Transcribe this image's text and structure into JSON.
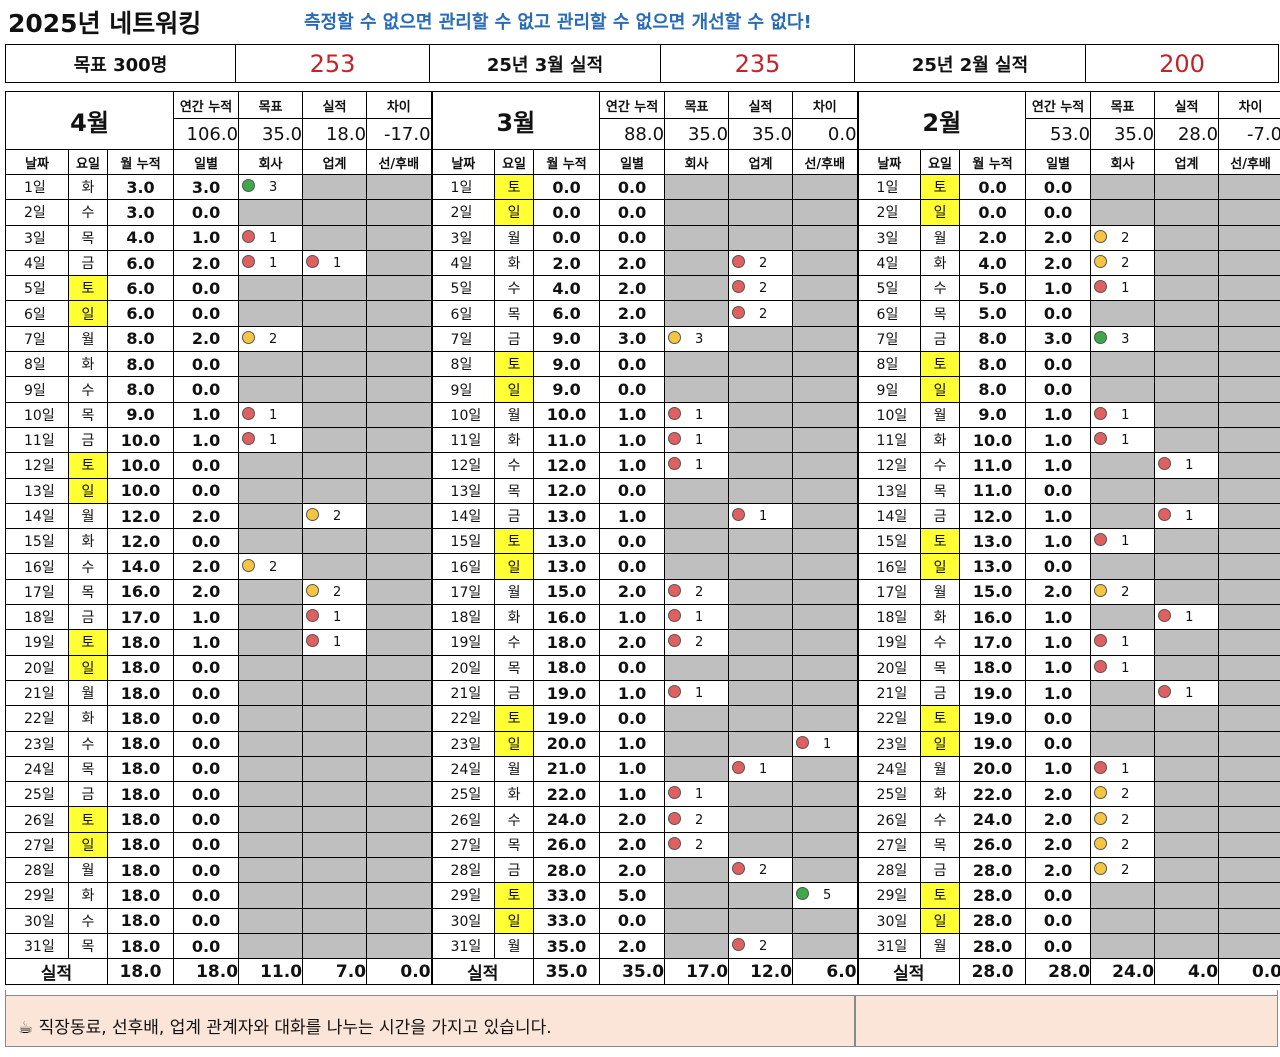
{
  "title": "2025년 네트워킹",
  "motto": "측정할 수 없으면 관리할 수 없고 관리할 수 없으면 개선할 수 없다!",
  "summary": [
    {
      "label": "목표 300명",
      "value": "253"
    },
    {
      "label": "25년 3월 실적",
      "value": "235"
    },
    {
      "label": "25년 2월 실적",
      "value": "200"
    }
  ],
  "header_labels": {
    "annual": "연간 누적",
    "target": "목표",
    "actual": "실적",
    "diff": "차이"
  },
  "col_labels": {
    "date": "날짜",
    "weekday": "요일",
    "month_cum": "월 누적",
    "daily": "일별",
    "company": "회사",
    "industry": "업계",
    "senior": "선/후배"
  },
  "total_label": "실적",
  "footer_text": "☕  직장동료, 선후배, 업계 관계자와 대화를 나누는 시간을 가지고 있습니다.",
  "months": [
    {
      "name": "4월",
      "annual": "106.0",
      "target": "35.0",
      "actual": "18.0",
      "diff": "-17.0",
      "totals": [
        "18.0",
        "18.0",
        "11.0",
        "7.0",
        "0.0"
      ],
      "days": [
        [
          "1일",
          "화",
          "3.0",
          "3.0",
          [
            "grn",
            3
          ],
          null,
          null
        ],
        [
          "2일",
          "수",
          "3.0",
          "0.0",
          null,
          null,
          null
        ],
        [
          "3일",
          "목",
          "4.0",
          "1.0",
          [
            "red",
            1
          ],
          null,
          null
        ],
        [
          "4일",
          "금",
          "6.0",
          "2.0",
          [
            "red",
            1
          ],
          [
            "red",
            1
          ],
          null
        ],
        [
          "5일",
          "토",
          "6.0",
          "0.0",
          null,
          null,
          null
        ],
        [
          "6일",
          "일",
          "6.0",
          "0.0",
          null,
          null,
          null
        ],
        [
          "7일",
          "월",
          "8.0",
          "2.0",
          [
            "yel",
            2
          ],
          null,
          null
        ],
        [
          "8일",
          "화",
          "8.0",
          "0.0",
          null,
          null,
          null
        ],
        [
          "9일",
          "수",
          "8.0",
          "0.0",
          null,
          null,
          null
        ],
        [
          "10일",
          "목",
          "9.0",
          "1.0",
          [
            "red",
            1
          ],
          null,
          null
        ],
        [
          "11일",
          "금",
          "10.0",
          "1.0",
          [
            "red",
            1
          ],
          null,
          null
        ],
        [
          "12일",
          "토",
          "10.0",
          "0.0",
          null,
          null,
          null
        ],
        [
          "13일",
          "일",
          "10.0",
          "0.0",
          null,
          null,
          null
        ],
        [
          "14일",
          "월",
          "12.0",
          "2.0",
          null,
          [
            "yel",
            2
          ],
          null
        ],
        [
          "15일",
          "화",
          "12.0",
          "0.0",
          null,
          null,
          null
        ],
        [
          "16일",
          "수",
          "14.0",
          "2.0",
          [
            "yel",
            2
          ],
          null,
          null
        ],
        [
          "17일",
          "목",
          "16.0",
          "2.0",
          null,
          [
            "yel",
            2
          ],
          null
        ],
        [
          "18일",
          "금",
          "17.0",
          "1.0",
          null,
          [
            "red",
            1
          ],
          null
        ],
        [
          "19일",
          "토",
          "18.0",
          "1.0",
          null,
          [
            "red",
            1
          ],
          null
        ],
        [
          "20일",
          "일",
          "18.0",
          "0.0",
          null,
          null,
          null
        ],
        [
          "21일",
          "월",
          "18.0",
          "0.0",
          null,
          null,
          null
        ],
        [
          "22일",
          "화",
          "18.0",
          "0.0",
          null,
          null,
          null
        ],
        [
          "23일",
          "수",
          "18.0",
          "0.0",
          null,
          null,
          null
        ],
        [
          "24일",
          "목",
          "18.0",
          "0.0",
          null,
          null,
          null
        ],
        [
          "25일",
          "금",
          "18.0",
          "0.0",
          null,
          null,
          null
        ],
        [
          "26일",
          "토",
          "18.0",
          "0.0",
          null,
          null,
          null
        ],
        [
          "27일",
          "일",
          "18.0",
          "0.0",
          null,
          null,
          null
        ],
        [
          "28일",
          "월",
          "18.0",
          "0.0",
          null,
          null,
          null
        ],
        [
          "29일",
          "화",
          "18.0",
          "0.0",
          null,
          null,
          null
        ],
        [
          "30일",
          "수",
          "18.0",
          "0.0",
          null,
          null,
          null
        ],
        [
          "31일",
          "목",
          "18.0",
          "0.0",
          null,
          null,
          null
        ]
      ]
    },
    {
      "name": "3월",
      "annual": "88.0",
      "target": "35.0",
      "actual": "35.0",
      "diff": "0.0",
      "totals": [
        "35.0",
        "35.0",
        "17.0",
        "12.0",
        "6.0"
      ],
      "days": [
        [
          "1일",
          "토",
          "0.0",
          "0.0",
          null,
          null,
          null
        ],
        [
          "2일",
          "일",
          "0.0",
          "0.0",
          null,
          null,
          null
        ],
        [
          "3일",
          "월",
          "0.0",
          "0.0",
          null,
          null,
          null
        ],
        [
          "4일",
          "화",
          "2.0",
          "2.0",
          null,
          [
            "red",
            2
          ],
          null
        ],
        [
          "5일",
          "수",
          "4.0",
          "2.0",
          null,
          [
            "red",
            2
          ],
          null
        ],
        [
          "6일",
          "목",
          "6.0",
          "2.0",
          null,
          [
            "red",
            2
          ],
          null
        ],
        [
          "7일",
          "금",
          "9.0",
          "3.0",
          [
            "yel",
            3
          ],
          null,
          null
        ],
        [
          "8일",
          "토",
          "9.0",
          "0.0",
          null,
          null,
          null
        ],
        [
          "9일",
          "일",
          "9.0",
          "0.0",
          null,
          null,
          null
        ],
        [
          "10일",
          "월",
          "10.0",
          "1.0",
          [
            "red",
            1
          ],
          null,
          null
        ],
        [
          "11일",
          "화",
          "11.0",
          "1.0",
          [
            "red",
            1
          ],
          null,
          null
        ],
        [
          "12일",
          "수",
          "12.0",
          "1.0",
          [
            "red",
            1
          ],
          null,
          null
        ],
        [
          "13일",
          "목",
          "12.0",
          "0.0",
          null,
          null,
          null
        ],
        [
          "14일",
          "금",
          "13.0",
          "1.0",
          null,
          [
            "red",
            1
          ],
          null
        ],
        [
          "15일",
          "토",
          "13.0",
          "0.0",
          null,
          null,
          null
        ],
        [
          "16일",
          "일",
          "13.0",
          "0.0",
          null,
          null,
          null
        ],
        [
          "17일",
          "월",
          "15.0",
          "2.0",
          [
            "red",
            2
          ],
          null,
          null
        ],
        [
          "18일",
          "화",
          "16.0",
          "1.0",
          [
            "red",
            1
          ],
          null,
          null
        ],
        [
          "19일",
          "수",
          "18.0",
          "2.0",
          [
            "red",
            2
          ],
          null,
          null
        ],
        [
          "20일",
          "목",
          "18.0",
          "0.0",
          null,
          null,
          null
        ],
        [
          "21일",
          "금",
          "19.0",
          "1.0",
          [
            "red",
            1
          ],
          null,
          null
        ],
        [
          "22일",
          "토",
          "19.0",
          "0.0",
          null,
          null,
          null
        ],
        [
          "23일",
          "일",
          "20.0",
          "1.0",
          null,
          null,
          [
            "red",
            1
          ]
        ],
        [
          "24일",
          "월",
          "21.0",
          "1.0",
          null,
          [
            "red",
            1
          ],
          null
        ],
        [
          "25일",
          "화",
          "22.0",
          "1.0",
          [
            "red",
            1
          ],
          null,
          null
        ],
        [
          "26일",
          "수",
          "24.0",
          "2.0",
          [
            "red",
            2
          ],
          null,
          null
        ],
        [
          "27일",
          "목",
          "26.0",
          "2.0",
          [
            "red",
            2
          ],
          null,
          null
        ],
        [
          "28일",
          "금",
          "28.0",
          "2.0",
          null,
          [
            "red",
            2
          ],
          null
        ],
        [
          "29일",
          "토",
          "33.0",
          "5.0",
          null,
          null,
          [
            "grn",
            5
          ]
        ],
        [
          "30일",
          "일",
          "33.0",
          "0.0",
          null,
          null,
          null
        ],
        [
          "31일",
          "월",
          "35.0",
          "2.0",
          null,
          [
            "red",
            2
          ],
          null
        ]
      ]
    },
    {
      "name": "2월",
      "annual": "53.0",
      "target": "35.0",
      "actual": "28.0",
      "diff": "-7.0",
      "totals": [
        "28.0",
        "28.0",
        "24.0",
        "4.0",
        "0.0"
      ],
      "days": [
        [
          "1일",
          "토",
          "0.0",
          "0.0",
          null,
          null,
          null
        ],
        [
          "2일",
          "일",
          "0.0",
          "0.0",
          null,
          null,
          null
        ],
        [
          "3일",
          "월",
          "2.0",
          "2.0",
          [
            "yel",
            2
          ],
          null,
          null
        ],
        [
          "4일",
          "화",
          "4.0",
          "2.0",
          [
            "yel",
            2
          ],
          null,
          null
        ],
        [
          "5일",
          "수",
          "5.0",
          "1.0",
          [
            "red",
            1
          ],
          null,
          null
        ],
        [
          "6일",
          "목",
          "5.0",
          "0.0",
          null,
          null,
          null
        ],
        [
          "7일",
          "금",
          "8.0",
          "3.0",
          [
            "grn",
            3
          ],
          null,
          null
        ],
        [
          "8일",
          "토",
          "8.0",
          "0.0",
          null,
          null,
          null
        ],
        [
          "9일",
          "일",
          "8.0",
          "0.0",
          null,
          null,
          null
        ],
        [
          "10일",
          "월",
          "9.0",
          "1.0",
          [
            "red",
            1
          ],
          null,
          null
        ],
        [
          "11일",
          "화",
          "10.0",
          "1.0",
          [
            "red",
            1
          ],
          null,
          null
        ],
        [
          "12일",
          "수",
          "11.0",
          "1.0",
          null,
          [
            "red",
            1
          ],
          null
        ],
        [
          "13일",
          "목",
          "11.0",
          "0.0",
          null,
          null,
          null
        ],
        [
          "14일",
          "금",
          "12.0",
          "1.0",
          null,
          [
            "red",
            1
          ],
          null
        ],
        [
          "15일",
          "토",
          "13.0",
          "1.0",
          [
            "red",
            1
          ],
          null,
          null
        ],
        [
          "16일",
          "일",
          "13.0",
          "0.0",
          null,
          null,
          null
        ],
        [
          "17일",
          "월",
          "15.0",
          "2.0",
          [
            "yel",
            2
          ],
          null,
          null
        ],
        [
          "18일",
          "화",
          "16.0",
          "1.0",
          null,
          [
            "red",
            1
          ],
          null
        ],
        [
          "19일",
          "수",
          "17.0",
          "1.0",
          [
            "red",
            1
          ],
          null,
          null
        ],
        [
          "20일",
          "목",
          "18.0",
          "1.0",
          [
            "red",
            1
          ],
          null,
          null
        ],
        [
          "21일",
          "금",
          "19.0",
          "1.0",
          null,
          [
            "red",
            1
          ],
          null
        ],
        [
          "22일",
          "토",
          "19.0",
          "0.0",
          null,
          null,
          null
        ],
        [
          "23일",
          "일",
          "19.0",
          "0.0",
          null,
          null,
          null
        ],
        [
          "24일",
          "월",
          "20.0",
          "1.0",
          [
            "red",
            1
          ],
          null,
          null
        ],
        [
          "25일",
          "화",
          "22.0",
          "2.0",
          [
            "yel",
            2
          ],
          null,
          null
        ],
        [
          "26일",
          "수",
          "24.0",
          "2.0",
          [
            "yel",
            2
          ],
          null,
          null
        ],
        [
          "27일",
          "목",
          "26.0",
          "2.0",
          [
            "yel",
            2
          ],
          null,
          null
        ],
        [
          "28일",
          "금",
          "28.0",
          "2.0",
          [
            "yel",
            2
          ],
          null,
          null
        ],
        [
          "29일",
          "토",
          "28.0",
          "0.0",
          null,
          null,
          null
        ],
        [
          "30일",
          "일",
          "28.0",
          "0.0",
          null,
          null,
          null
        ],
        [
          "31일",
          "월",
          "28.0",
          "0.0",
          null,
          null,
          null
        ]
      ]
    }
  ]
}
